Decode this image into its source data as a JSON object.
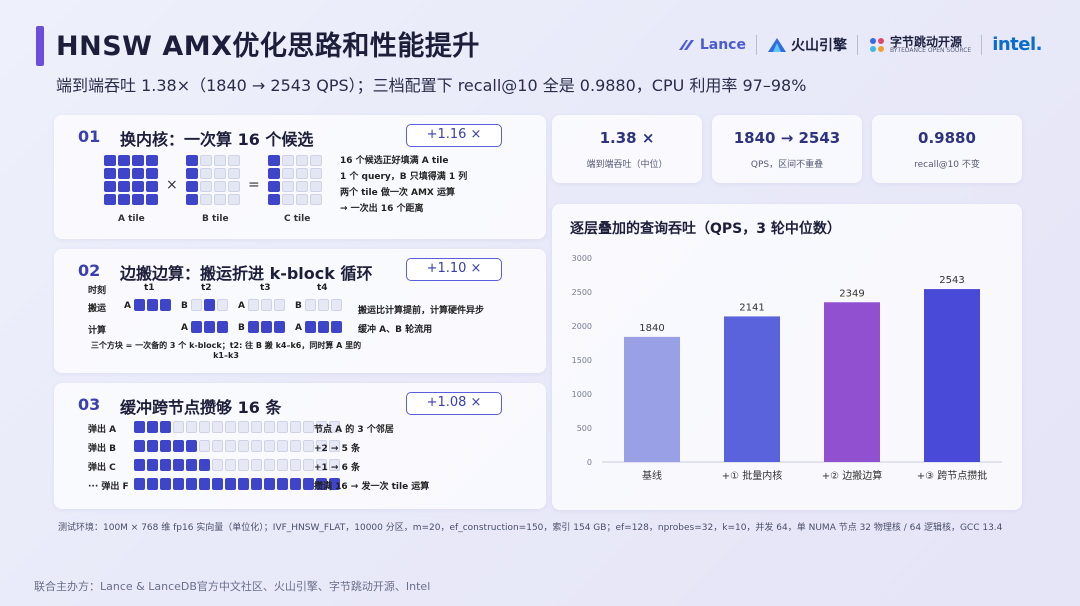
{
  "header": {
    "title": "HNSW AMX优化思路和性能提升",
    "subtitle": "端到端吞吐 1.38×（1840 → 2543 QPS）；三档配置下 recall@10 全是 0.9880，CPU 利用率 97–98%"
  },
  "logos": {
    "lance": "Lance",
    "volc": "火山引擎",
    "byte": "字节跳动开源",
    "byte_sub": "BYTEDANCE OPEN SOURCE",
    "intel": "intel."
  },
  "step1": {
    "num": "01",
    "title": "换内核：一次算 16 个候选",
    "gain": "+1.16 ×",
    "times": "×",
    "equals": "=",
    "a_label": "A tile",
    "b_label": "B tile",
    "c_label": "C tile",
    "notes": [
      "16 个候选正好填满 A tile",
      "1 个 query，B 只填得满 1 列",
      "两个 tile 做一次 AMX 运算",
      "→ 一次出 16 个距离"
    ]
  },
  "step2": {
    "num": "02",
    "title": "边搬边算：搬运折进 k-block 循环",
    "gain": "+1.10 ×",
    "time_label": "时刻",
    "times": [
      "t1",
      "t2",
      "t3",
      "t4"
    ],
    "move_label": "搬运",
    "compute_label": "计算",
    "a": "A",
    "b": "B",
    "notes": [
      "搬运比计算提前，计算硬件异步",
      "缓冲 A、B 轮流用"
    ],
    "caption": "三个方块 = 一次备的 3 个 k-block；t2: 往 B 搬 k4–k6，同时算 A 里的 k1–k3"
  },
  "step3": {
    "num": "03",
    "title": "缓冲跨节点攒够 16 条",
    "gain": "+1.08 ×",
    "rows": [
      {
        "label": "弹出 A",
        "filled": 3,
        "note": "节点 A 的 3 个邻居"
      },
      {
        "label": "弹出 B",
        "filled": 5,
        "note": "+2 → 5 条"
      },
      {
        "label": "弹出 C",
        "filled": 6,
        "note": "+1 → 6 条"
      },
      {
        "label": "··· 弹出 F",
        "filled": 16,
        "note": "攒满 16 → 发一次 tile 运算"
      }
    ]
  },
  "metrics": [
    {
      "value": "1.38 ×",
      "label": "端到端吞吐（中位）"
    },
    {
      "value": "1840 → 2543",
      "label": "QPS，区间不重叠"
    },
    {
      "value": "0.9880",
      "label": "recall@10 不变"
    }
  ],
  "chart_data": {
    "type": "bar",
    "title": "逐层叠加的查询吞吐（QPS，3 轮中位数）",
    "categories": [
      "基线",
      "+① 批量内核",
      "+② 边搬边算",
      "+③ 跨节点攒批"
    ],
    "values": [
      1840,
      2141,
      2349,
      2543
    ],
    "ylim": [
      0,
      3000
    ],
    "yticks": [
      0,
      500,
      1000,
      1500,
      2000,
      2500,
      3000
    ],
    "colors": [
      "#9aa0e6",
      "#5a62dc",
      "#9050d0",
      "#4a4ad8"
    ],
    "grid": false
  },
  "env": "测试环境：100M × 768 维 fp16 实向量（单位化）；IVF_HNSW_FLAT，10000 分区，m=20，ef_construction=150，索引 154 GB；ef=128，nprobes=32，k=10，并发 64，单 NUMA 节点 32 物理核 / 64 逻辑核，GCC 13.4",
  "footer": "联合主办方：Lance & LanceDB官方中文社区、火山引擎、字节跳动开源、Intel"
}
